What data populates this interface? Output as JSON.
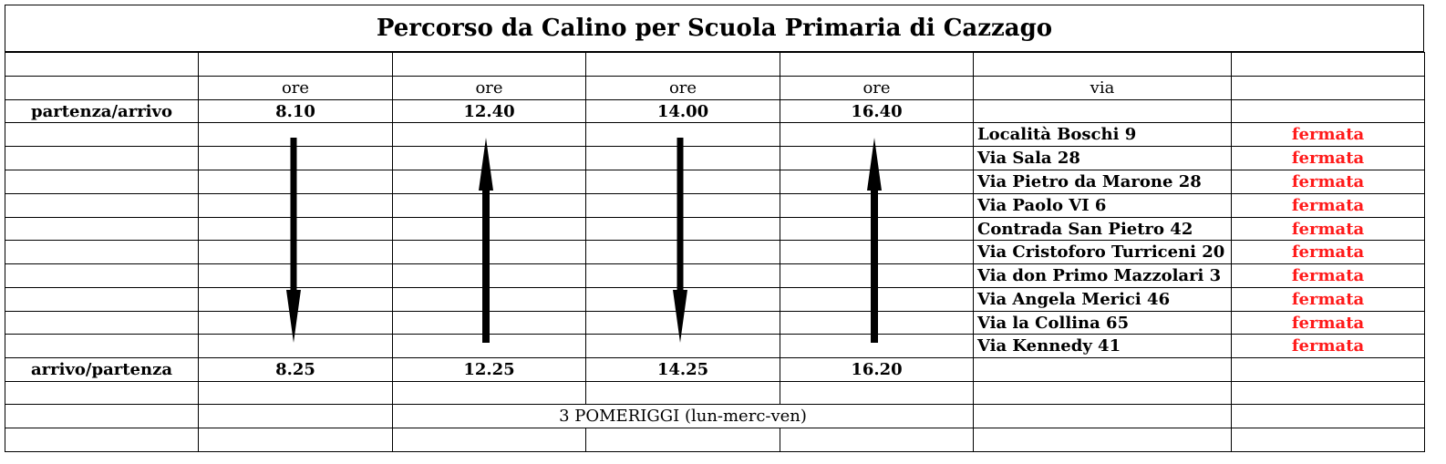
{
  "title": "Percorso da Calino per Scuola Primaria di Cazzago",
  "header": {
    "ore": "ore",
    "via": "via"
  },
  "partenza_label": "partenza/arrivo",
  "arrivo_label": "arrivo/partenza",
  "times_top": [
    "8.10",
    "12.40",
    "14.00",
    "16.40"
  ],
  "times_bottom": [
    "8.25",
    "12.25",
    "14.25",
    "16.20"
  ],
  "arrow_directions": [
    "down",
    "up",
    "down",
    "up"
  ],
  "stops": [
    {
      "via": "Località Boschi 9",
      "status": "fermata"
    },
    {
      "via": "Via Sala 28",
      "status": "fermata"
    },
    {
      "via": "Via Pietro da Marone 28",
      "status": "fermata"
    },
    {
      "via": "Via Paolo VI 6",
      "status": "fermata"
    },
    {
      "via": "Contrada San Pietro 42",
      "status": "fermata"
    },
    {
      "via": "Via Cristoforo Turriceni 20",
      "status": "fermata"
    },
    {
      "via": "Via don Primo Mazzolari 3",
      "status": "fermata"
    },
    {
      "via": "Via Angela Merici 46",
      "status": "fermata"
    },
    {
      "via": "Via la Collina 65",
      "status": "fermata"
    },
    {
      "via": "Via Kennedy 41",
      "status": "fermata"
    }
  ],
  "note": "3 POMERIGGI (lun-merc-ven)",
  "colors": {
    "fermata": "#ff1a1a"
  }
}
